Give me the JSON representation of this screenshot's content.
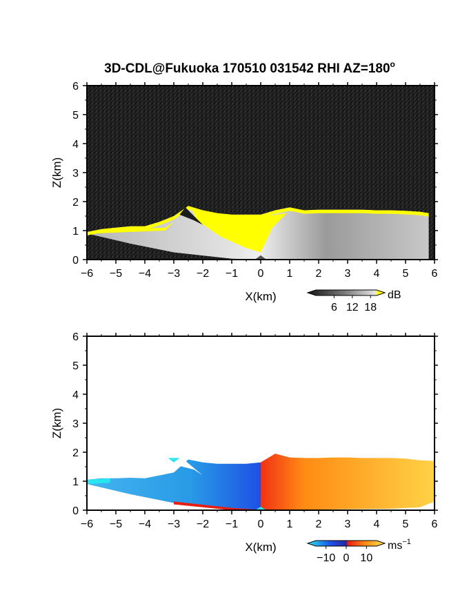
{
  "title": {
    "prefix": "3D-CDL@Fukuoka 170510 031542 RHI AZ=180",
    "degree": "o"
  },
  "colors": {
    "gray_dark": "#1e1e1e",
    "gray_light": "#e6e6e6",
    "echo_yellow": "#ffff00",
    "vel_blue_dark": "#1e50e6",
    "vel_blue_light": "#28c8ff",
    "vel_cyan": "#28e6f0",
    "vel_red": "#e61e14",
    "vel_orange": "#ff8c14",
    "vel_yellow": "#ffe650"
  },
  "chart_data": [
    {
      "type": "heatmap",
      "quantity": "reflectivity",
      "xlabel": "X(km)",
      "ylabel": "Z(km)",
      "xlim": [
        -6,
        6
      ],
      "ylim": [
        0,
        6
      ],
      "xticks": [
        -6,
        -5,
        -4,
        -3,
        -2,
        -1,
        0,
        1,
        2,
        3,
        4,
        5,
        6
      ],
      "yticks": [
        0,
        1,
        2,
        3,
        4,
        5,
        6
      ],
      "colorbar": {
        "unit": "dB",
        "ticks": [
          6,
          12,
          18
        ],
        "range": [
          0,
          20
        ],
        "palette": "gray-to-yellow"
      },
      "echo_top_km": [
        [
          -6.0,
          0.95
        ],
        [
          -5.5,
          1.05
        ],
        [
          -5.0,
          1.1
        ],
        [
          -4.5,
          1.15
        ],
        [
          -4.0,
          1.15
        ],
        [
          -3.5,
          1.3
        ],
        [
          -3.0,
          1.5
        ],
        [
          -2.5,
          1.85
        ],
        [
          -2.0,
          1.7
        ],
        [
          -1.5,
          1.6
        ],
        [
          -1.0,
          1.55
        ],
        [
          -0.5,
          1.55
        ],
        [
          0.0,
          1.55
        ],
        [
          0.5,
          1.7
        ],
        [
          1.0,
          1.8
        ],
        [
          1.5,
          1.7
        ],
        [
          2.0,
          1.72
        ],
        [
          2.5,
          1.72
        ],
        [
          3.0,
          1.72
        ],
        [
          3.5,
          1.72
        ],
        [
          4.0,
          1.7
        ],
        [
          4.5,
          1.7
        ],
        [
          5.0,
          1.68
        ],
        [
          5.5,
          1.65
        ],
        [
          5.8,
          1.6
        ]
      ]
    },
    {
      "type": "heatmap",
      "quantity": "doppler velocity",
      "xlabel": "X(km)",
      "ylabel": "Z(km)",
      "xlim": [
        -6,
        6
      ],
      "ylim": [
        0,
        6
      ],
      "xticks": [
        -6,
        -5,
        -4,
        -3,
        -2,
        -1,
        0,
        1,
        2,
        3,
        4,
        5,
        6
      ],
      "yticks": [
        0,
        1,
        2,
        3,
        4,
        5,
        6
      ],
      "colorbar": {
        "unit": "ms",
        "unit_exp": "−1",
        "ticks": [
          -10,
          0,
          10
        ],
        "tick_labels": [
          "−10",
          "0",
          "10"
        ],
        "range": [
          -15,
          15
        ],
        "palette": "cyan-blue-red-yellow"
      },
      "echo_top_km": [
        [
          -6.0,
          1.05
        ],
        [
          -5.5,
          1.1
        ],
        [
          -5.0,
          1.1
        ],
        [
          -4.5,
          1.12
        ],
        [
          -4.0,
          1.1
        ],
        [
          -3.5,
          1.2
        ],
        [
          -3.0,
          1.3
        ],
        [
          -2.5,
          1.75
        ],
        [
          -2.0,
          1.65
        ],
        [
          -1.5,
          1.6
        ],
        [
          -1.0,
          1.6
        ],
        [
          -0.5,
          1.6
        ],
        [
          0.0,
          1.65
        ],
        [
          0.5,
          1.95
        ],
        [
          1.0,
          1.82
        ],
        [
          1.5,
          1.8
        ],
        [
          2.0,
          1.8
        ],
        [
          2.5,
          1.82
        ],
        [
          3.0,
          1.82
        ],
        [
          3.5,
          1.8
        ],
        [
          4.0,
          1.8
        ],
        [
          4.5,
          1.8
        ],
        [
          5.0,
          1.78
        ],
        [
          5.5,
          1.72
        ],
        [
          6.0,
          1.7
        ]
      ]
    }
  ]
}
